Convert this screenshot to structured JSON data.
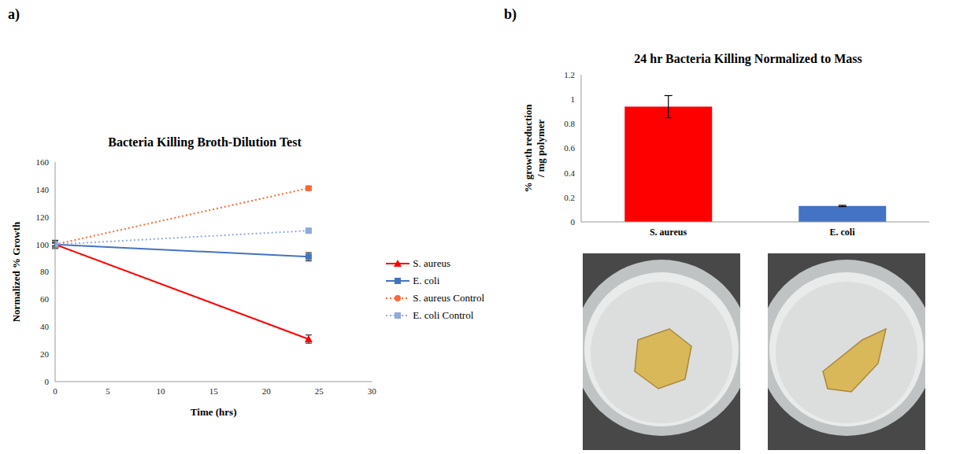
{
  "chart_data": [
    {
      "panel_label": "a)",
      "type": "line",
      "title": "Bacteria Killing Broth-Dilution Test",
      "x_label": "Time (hrs)",
      "y_label": "Normalized % Growth",
      "x": [
        0,
        24
      ],
      "xlim": [
        0,
        30
      ],
      "xticks": [
        0,
        5,
        10,
        15,
        20,
        25,
        30
      ],
      "ylim": [
        0,
        160
      ],
      "yticks": [
        0,
        20,
        40,
        60,
        80,
        100,
        120,
        140,
        160
      ],
      "grid": false,
      "legend": "right",
      "series": [
        {
          "name": "S. aureus",
          "color": "#ff0000",
          "marker": "triangle",
          "line_style": "solid",
          "values": [
            100,
            31
          ],
          "errors": [
            2,
            3
          ]
        },
        {
          "name": "E. coli",
          "color": "#4472c4",
          "marker": "square",
          "line_style": "solid",
          "values": [
            100,
            91
          ],
          "errors": [
            3,
            3
          ]
        },
        {
          "name": "S. aureus Control",
          "color": "#ff6633",
          "marker": "circle",
          "line_style": "dotted",
          "values": [
            100,
            141
          ],
          "errors": [
            1,
            1.5
          ]
        },
        {
          "name": "E. coli Control",
          "color": "#8faadc",
          "marker": "square",
          "line_style": "dotted",
          "values": [
            100,
            110
          ],
          "errors": [
            1,
            1
          ]
        }
      ]
    },
    {
      "panel_label": "b)",
      "type": "bar",
      "title": "24 hr Bacteria Killing Normalized to Mass",
      "y_label": "% growth reduction / mg polymer",
      "categories": [
        "S. aureus",
        "E. coli"
      ],
      "values": [
        0.94,
        0.13
      ],
      "errors": [
        0.09,
        0.005
      ],
      "colors": [
        "#ff0000",
        "#4472c4"
      ],
      "ylim": [
        0,
        1.2
      ],
      "yticks": [
        0,
        0.2,
        0.4,
        0.6,
        0.8,
        1,
        1.2
      ],
      "grid": false
    }
  ]
}
